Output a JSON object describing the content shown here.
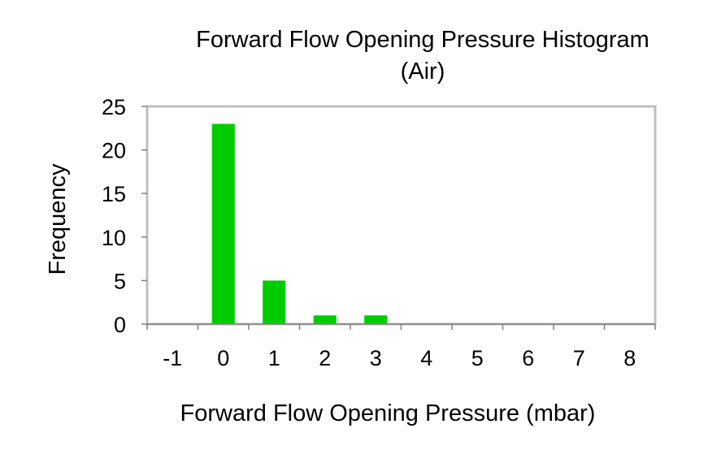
{
  "chart_data": {
    "type": "bar",
    "title": "Forward Flow Opening Pressure Histogram",
    "subtitle": "(Air)",
    "xlabel": "Forward Flow Opening Pressure (mbar)",
    "ylabel": "Frequency",
    "categories": [
      "-1",
      "0",
      "1",
      "2",
      "3",
      "4",
      "5",
      "6",
      "7",
      "8"
    ],
    "values": [
      0,
      23,
      5,
      1,
      1,
      0,
      0,
      0,
      0,
      0
    ],
    "ylim": [
      0,
      25
    ],
    "yticks": [
      "0",
      "5",
      "10",
      "15",
      "20",
      "25"
    ],
    "bar_color": "#00cc00",
    "plot_border_color": "#bfbfbf",
    "grid": false,
    "legend": false
  }
}
